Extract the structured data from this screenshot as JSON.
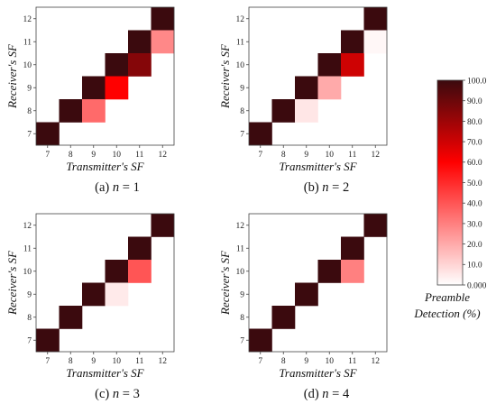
{
  "chart_data": {
    "type": "heatmap",
    "xlabel": "Transmitter's SF",
    "ylabel": "Receiver's SF",
    "sf_ticks": [
      7,
      8,
      9,
      10,
      11,
      12
    ],
    "value_range": [
      0,
      100
    ],
    "colorbar": {
      "title_line1": "Preamble",
      "title_line2": "Detection (%)",
      "ticks": [
        0.0,
        10.0,
        20.0,
        30.0,
        40.0,
        50.0,
        60.0,
        70.0,
        80.0,
        90.0,
        100.0
      ],
      "colors": [
        "#ffffff",
        "#ff0000",
        "#3b0a0e"
      ]
    },
    "panels": [
      {
        "caption_prefix": "(a) ",
        "caption_var": "n",
        "caption_value": " = 1",
        "cells": [
          {
            "tx": 7,
            "rx": 7,
            "value": 100
          },
          {
            "tx": 8,
            "rx": 8,
            "value": 100
          },
          {
            "tx": 9,
            "rx": 9,
            "value": 100
          },
          {
            "tx": 10,
            "rx": 10,
            "value": 100
          },
          {
            "tx": 11,
            "rx": 11,
            "value": 100
          },
          {
            "tx": 12,
            "rx": 12,
            "value": 100
          },
          {
            "tx": 9,
            "rx": 8,
            "value": 35
          },
          {
            "tx": 10,
            "rx": 9,
            "value": 60
          },
          {
            "tx": 11,
            "rx": 10,
            "value": 85
          },
          {
            "tx": 12,
            "rx": 11,
            "value": 28
          }
        ]
      },
      {
        "caption_prefix": "(b) ",
        "caption_var": "n",
        "caption_value": " = 2",
        "cells": [
          {
            "tx": 7,
            "rx": 7,
            "value": 100
          },
          {
            "tx": 8,
            "rx": 8,
            "value": 100
          },
          {
            "tx": 9,
            "rx": 9,
            "value": 100
          },
          {
            "tx": 10,
            "rx": 10,
            "value": 100
          },
          {
            "tx": 11,
            "rx": 11,
            "value": 100
          },
          {
            "tx": 12,
            "rx": 12,
            "value": 100
          },
          {
            "tx": 9,
            "rx": 8,
            "value": 6
          },
          {
            "tx": 10,
            "rx": 9,
            "value": 20
          },
          {
            "tx": 11,
            "rx": 10,
            "value": 70
          },
          {
            "tx": 12,
            "rx": 11,
            "value": 2
          }
        ]
      },
      {
        "caption_prefix": "(c) ",
        "caption_var": "n",
        "caption_value": " = 3",
        "cells": [
          {
            "tx": 7,
            "rx": 7,
            "value": 100
          },
          {
            "tx": 8,
            "rx": 8,
            "value": 100
          },
          {
            "tx": 9,
            "rx": 9,
            "value": 100
          },
          {
            "tx": 10,
            "rx": 10,
            "value": 100
          },
          {
            "tx": 11,
            "rx": 11,
            "value": 100
          },
          {
            "tx": 12,
            "rx": 12,
            "value": 100
          },
          {
            "tx": 10,
            "rx": 9,
            "value": 5
          },
          {
            "tx": 11,
            "rx": 10,
            "value": 40
          }
        ]
      },
      {
        "caption_prefix": "(d) ",
        "caption_var": "n",
        "caption_value": " = 4",
        "cells": [
          {
            "tx": 7,
            "rx": 7,
            "value": 100
          },
          {
            "tx": 8,
            "rx": 8,
            "value": 100
          },
          {
            "tx": 9,
            "rx": 9,
            "value": 100
          },
          {
            "tx": 10,
            "rx": 10,
            "value": 100
          },
          {
            "tx": 11,
            "rx": 11,
            "value": 100
          },
          {
            "tx": 12,
            "rx": 12,
            "value": 100
          },
          {
            "tx": 11,
            "rx": 10,
            "value": 30
          }
        ]
      }
    ]
  }
}
